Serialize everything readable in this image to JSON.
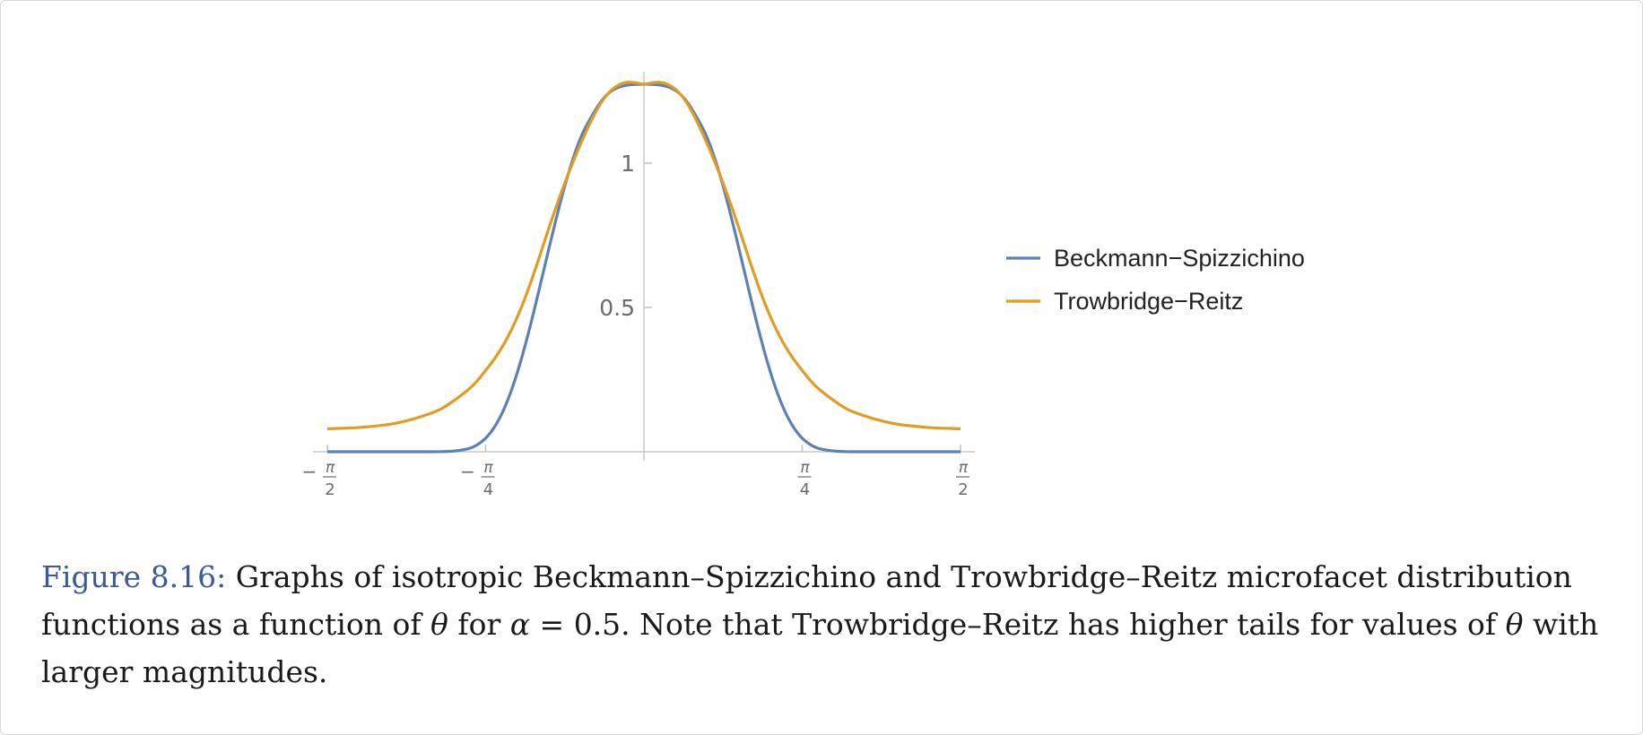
{
  "chart_data": {
    "type": "line",
    "x_domain": [
      -1.5708,
      1.5708
    ],
    "ylim": [
      0,
      1.27324
    ],
    "x_ticks": [
      {
        "value": -1.5708,
        "sign": "−",
        "num": "π",
        "den": "2"
      },
      {
        "value": -0.7854,
        "sign": "−",
        "num": "π",
        "den": "4"
      },
      {
        "value": 0.7854,
        "sign": "",
        "num": "π",
        "den": "4"
      },
      {
        "value": 1.5708,
        "sign": "",
        "num": "π",
        "den": "2"
      }
    ],
    "y_ticks": [
      {
        "value": 1,
        "label": "1"
      },
      {
        "value": 0.5,
        "label": "0.5"
      }
    ],
    "grid": false,
    "legend_position": "right",
    "series": [
      {
        "name": "Beckmann−Spizzichino",
        "color": "#5e81b5",
        "x": [
          -1.5708,
          -1.3963,
          -1.2217,
          -1.0472,
          -0.9599,
          -0.8727,
          -0.829,
          -0.7854,
          -0.7418,
          -0.6981,
          -0.6545,
          -0.6109,
          -0.5672,
          -0.5236,
          -0.48,
          -0.4363,
          -0.3927,
          -0.3491,
          -0.3054,
          -0.2618,
          -0.2182,
          -0.1745,
          -0.1309,
          -0.0873,
          -0.0436,
          0,
          0.0436,
          0.0873,
          0.1309,
          0.1745,
          0.2182,
          0.2618,
          0.3054,
          0.3491,
          0.3927,
          0.4363,
          0.48,
          0.5236,
          0.5672,
          0.6109,
          0.6545,
          0.6981,
          0.7418,
          0.7854,
          0.829,
          0.8727,
          0.9599,
          1.0472,
          1.2217,
          1.3963,
          1.5708
        ],
        "y": [
          0,
          0,
          0,
          0.0001,
          0.0015,
          0.0102,
          0.0232,
          0.0468,
          0.0853,
          0.142,
          0.2187,
          0.3148,
          0.4273,
          0.5509,
          0.6791,
          0.8047,
          0.9207,
          1.0212,
          1.1016,
          1.1591,
          1.2083,
          1.2427,
          1.2611,
          1.2696,
          1.2728,
          1.2732,
          1.2728,
          1.2696,
          1.2611,
          1.2427,
          1.2083,
          1.1591,
          1.1016,
          1.0212,
          0.9207,
          0.8047,
          0.6791,
          0.5509,
          0.4273,
          0.3148,
          0.2187,
          0.142,
          0.0853,
          0.0468,
          0.0232,
          0.0102,
          0.0015,
          0.0001,
          0,
          0,
          0
        ]
      },
      {
        "name": "Trowbridge−Reitz",
        "color": "#e19c24",
        "x": [
          -1.5708,
          -1.3963,
          -1.2217,
          -1.0472,
          -0.9599,
          -0.8727,
          -0.829,
          -0.7854,
          -0.7418,
          -0.6981,
          -0.6545,
          -0.6109,
          -0.5672,
          -0.5236,
          -0.48,
          -0.4363,
          -0.3927,
          -0.3491,
          -0.3054,
          -0.2618,
          -0.2182,
          -0.1745,
          -0.1309,
          -0.0873,
          -0.0436,
          0,
          0.0436,
          0.0873,
          0.1309,
          0.1745,
          0.2182,
          0.2618,
          0.3054,
          0.3491,
          0.3927,
          0.4363,
          0.48,
          0.5236,
          0.5672,
          0.6109,
          0.6545,
          0.6981,
          0.7418,
          0.7854,
          0.829,
          0.8727,
          0.9599,
          1.0472,
          1.2217,
          1.3963,
          1.5708
        ],
        "y": [
          0.0796,
          0.0849,
          0.1001,
          0.1357,
          0.1688,
          0.2146,
          0.244,
          0.2818,
          0.3215,
          0.3692,
          0.4268,
          0.4954,
          0.5754,
          0.6643,
          0.7569,
          0.8468,
          0.9306,
          1.0084,
          1.0803,
          1.1463,
          1.2024,
          1.244,
          1.2683,
          1.2798,
          1.2786,
          1.2732,
          1.2786,
          1.2798,
          1.2683,
          1.244,
          1.2024,
          1.1463,
          1.0803,
          1.0084,
          0.9306,
          0.8468,
          0.7569,
          0.6643,
          0.5754,
          0.4954,
          0.4268,
          0.3692,
          0.3215,
          0.2818,
          0.244,
          0.2146,
          0.1688,
          0.1357,
          0.1001,
          0.0849,
          0.0796
        ]
      }
    ]
  },
  "caption": {
    "label": "Figure 8.16:",
    "text_1": " Graphs of isotropic Beckmann–Spizzichino and Trowbridge–Reitz microfacet distribution functions as a function of ",
    "theta_1": "θ",
    "text_2": " for ",
    "alpha": "α",
    "equals": " = ",
    "alpha_value": "0.5",
    "text_3": ". Note that Trowbridge–Reitz has higher tails for values of ",
    "theta_2": "θ",
    "text_4": " with larger magnitudes."
  }
}
